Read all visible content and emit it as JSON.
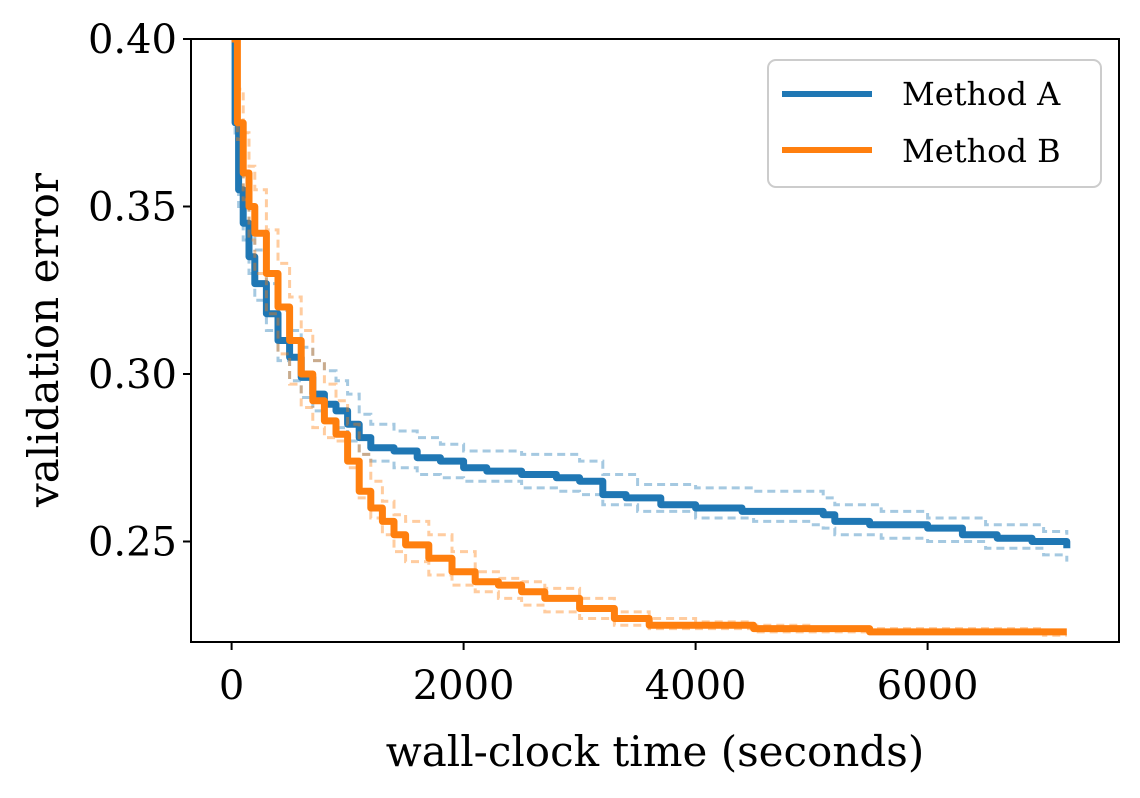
{
  "chart_data": {
    "type": "line",
    "title": "",
    "xlabel": "wall-clock time (seconds)",
    "ylabel": "validation error",
    "xlim": [
      -350,
      7650
    ],
    "ylim": [
      0.22,
      0.4
    ],
    "xticks": [
      0,
      2000,
      4000,
      6000
    ],
    "xtick_labels": [
      "0",
      "2000",
      "4000",
      "6000"
    ],
    "yticks": [
      0.25,
      0.3,
      0.35,
      0.4
    ],
    "ytick_labels": [
      "0.25",
      "0.30",
      "0.35",
      "0.40"
    ],
    "grid": false,
    "legend_position": "top-right",
    "series": [
      {
        "name": "Method A",
        "color": "#1f77b4",
        "mean": {
          "x": [
            0,
            30,
            60,
            100,
            150,
            200,
            300,
            400,
            500,
            600,
            700,
            800,
            900,
            1000,
            1100,
            1200,
            1400,
            1600,
            1800,
            2000,
            2200,
            2500,
            2800,
            3000,
            3200,
            3400,
            3700,
            4000,
            4400,
            4800,
            5000,
            5100,
            5200,
            5500,
            6000,
            6300,
            6600,
            6900,
            7200
          ],
          "y": [
            0.4,
            0.375,
            0.355,
            0.345,
            0.335,
            0.327,
            0.318,
            0.31,
            0.305,
            0.299,
            0.294,
            0.291,
            0.289,
            0.285,
            0.281,
            0.278,
            0.277,
            0.275,
            0.274,
            0.272,
            0.271,
            0.27,
            0.269,
            0.268,
            0.264,
            0.263,
            0.261,
            0.26,
            0.259,
            0.259,
            0.259,
            0.258,
            0.256,
            0.255,
            0.254,
            0.252,
            0.251,
            0.25,
            0.248
          ]
        },
        "upper": {
          "x": [
            0,
            30,
            60,
            100,
            150,
            200,
            300,
            400,
            500,
            600,
            700,
            800,
            900,
            1000,
            1100,
            1200,
            1400,
            1600,
            1800,
            2000,
            2500,
            3000,
            3200,
            3500,
            4000,
            4500,
            5000,
            5100,
            5200,
            5600,
            6000,
            6500,
            7000,
            7200
          ],
          "y": [
            0.4,
            0.38,
            0.365,
            0.355,
            0.345,
            0.337,
            0.327,
            0.319,
            0.313,
            0.308,
            0.304,
            0.301,
            0.298,
            0.294,
            0.288,
            0.285,
            0.283,
            0.281,
            0.279,
            0.277,
            0.276,
            0.274,
            0.27,
            0.267,
            0.266,
            0.265,
            0.265,
            0.263,
            0.261,
            0.259,
            0.257,
            0.255,
            0.253,
            0.252
          ]
        },
        "lower": {
          "x": [
            0,
            30,
            60,
            100,
            150,
            200,
            300,
            400,
            500,
            600,
            700,
            800,
            900,
            1000,
            1100,
            1200,
            1400,
            1600,
            1800,
            2000,
            2500,
            2800,
            3000,
            3200,
            3500,
            4000,
            4500,
            5000,
            5100,
            5200,
            5600,
            6000,
            6500,
            7000,
            7200
          ],
          "y": [
            0.4,
            0.37,
            0.35,
            0.34,
            0.33,
            0.322,
            0.313,
            0.304,
            0.298,
            0.293,
            0.289,
            0.286,
            0.284,
            0.28,
            0.276,
            0.274,
            0.272,
            0.27,
            0.269,
            0.268,
            0.266,
            0.265,
            0.264,
            0.261,
            0.259,
            0.257,
            0.256,
            0.255,
            0.254,
            0.252,
            0.251,
            0.25,
            0.248,
            0.246,
            0.244
          ]
        }
      },
      {
        "name": "Method B",
        "color": "#ff7f0e",
        "mean": {
          "x": [
            0,
            50,
            100,
            150,
            200,
            300,
            400,
            500,
            600,
            700,
            800,
            900,
            1000,
            1100,
            1200,
            1300,
            1400,
            1500,
            1700,
            1900,
            2100,
            2300,
            2500,
            2700,
            3000,
            3300,
            3600,
            4000,
            4500,
            5000,
            5500,
            6000,
            6500,
            7000,
            7200
          ],
          "y": [
            0.4,
            0.375,
            0.36,
            0.35,
            0.342,
            0.33,
            0.32,
            0.31,
            0.3,
            0.292,
            0.286,
            0.282,
            0.274,
            0.265,
            0.26,
            0.256,
            0.252,
            0.249,
            0.245,
            0.241,
            0.238,
            0.237,
            0.235,
            0.233,
            0.23,
            0.227,
            0.225,
            0.225,
            0.224,
            0.224,
            0.223,
            0.223,
            0.223,
            0.223,
            0.223
          ]
        },
        "upper": {
          "x": [
            0,
            50,
            100,
            150,
            200,
            300,
            400,
            500,
            600,
            700,
            800,
            900,
            1000,
            1100,
            1200,
            1300,
            1400,
            1500,
            1700,
            1900,
            2100,
            2300,
            2500,
            2700,
            3000,
            3300,
            3600,
            4000,
            4500,
            5000,
            6000,
            7000,
            7200
          ],
          "y": [
            0.4,
            0.385,
            0.372,
            0.362,
            0.355,
            0.343,
            0.333,
            0.323,
            0.313,
            0.304,
            0.297,
            0.292,
            0.285,
            0.276,
            0.268,
            0.262,
            0.258,
            0.256,
            0.252,
            0.247,
            0.241,
            0.239,
            0.238,
            0.236,
            0.233,
            0.229,
            0.227,
            0.226,
            0.225,
            0.224,
            0.224,
            0.223,
            0.223
          ]
        },
        "lower": {
          "x": [
            0,
            50,
            100,
            150,
            200,
            300,
            400,
            500,
            600,
            700,
            800,
            900,
            1000,
            1100,
            1200,
            1300,
            1400,
            1500,
            1700,
            1900,
            2100,
            2300,
            2500,
            2700,
            3000,
            3300,
            3600,
            4000,
            4500,
            5000,
            6000,
            7000,
            7200
          ],
          "y": [
            0.4,
            0.37,
            0.352,
            0.34,
            0.33,
            0.318,
            0.306,
            0.297,
            0.29,
            0.284,
            0.281,
            0.28,
            0.272,
            0.263,
            0.257,
            0.252,
            0.247,
            0.244,
            0.24,
            0.237,
            0.235,
            0.233,
            0.231,
            0.229,
            0.227,
            0.225,
            0.224,
            0.224,
            0.223,
            0.223,
            0.223,
            0.222,
            0.222
          ]
        }
      }
    ]
  }
}
